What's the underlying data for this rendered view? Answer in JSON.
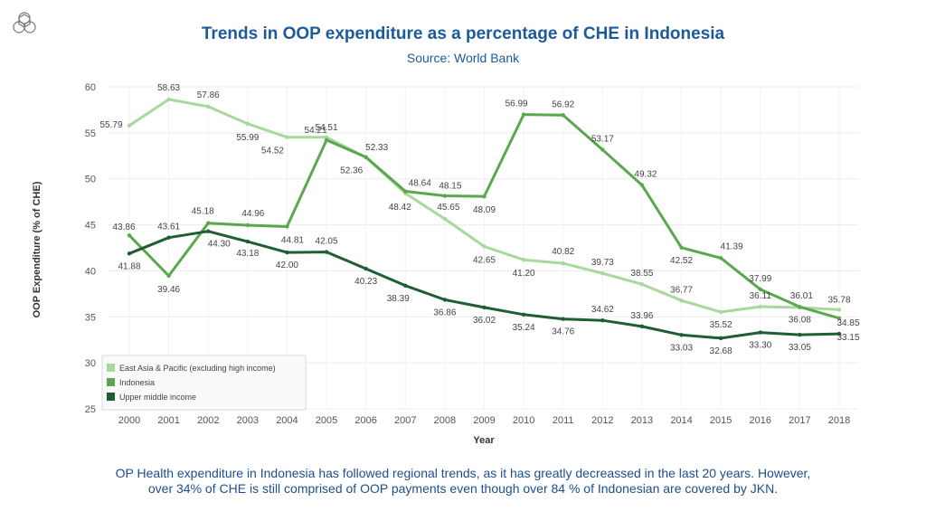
{
  "header": {
    "title": "Trends in OOP expenditure as a percentage of CHE in Indonesia",
    "subtitle": "Source: World Bank",
    "logo_icon": "hexagon-flower-logo-icon"
  },
  "caption": {
    "line1": "OP Health expenditure in Indonesia has followed regional trends, as it has greatly decreassed in the last 20 years. However,",
    "line2": "over 34% of CHE is still comprised of OOP payments even though over 84 % of Indonesian are covered by JKN."
  },
  "chart_data": {
    "type": "line",
    "xlabel": "Year",
    "ylabel": "OOP Expenditure (% of CHE)",
    "ylim": [
      25,
      60
    ],
    "yticks": [
      25,
      30,
      35,
      40,
      45,
      50,
      55,
      60
    ],
    "grid": true,
    "legend": "bottom-left",
    "x": [
      "2000",
      "2001",
      "2002",
      "2003",
      "2004",
      "2005",
      "2006",
      "2007",
      "2008",
      "2009",
      "2010",
      "2011",
      "2012",
      "2013",
      "2014",
      "2015",
      "2016",
      "2017",
      "2018"
    ],
    "series": [
      {
        "name": "East Asia & Pacific (excluding high income)",
        "color": "#a8d89c",
        "values": [
          55.79,
          58.63,
          57.86,
          55.99,
          54.52,
          54.51,
          52.33,
          48.42,
          45.65,
          42.65,
          41.2,
          40.82,
          39.73,
          38.55,
          36.77,
          35.52,
          36.11,
          36.01,
          35.78
        ],
        "labels": [
          "55.79",
          "58.63",
          "57.86",
          "55.99",
          "54.52",
          "54.51",
          "52.33",
          "48.42",
          "45.65",
          "42.65",
          "41.20",
          "40.82",
          "39.73",
          "38.55",
          "36.77",
          "35.52",
          "36.11",
          "36.01",
          "35.78"
        ]
      },
      {
        "name": "Indonesia",
        "color": "#5aa84e",
        "values": [
          43.86,
          39.46,
          45.18,
          44.96,
          44.81,
          54.21,
          52.36,
          48.64,
          48.15,
          48.09,
          56.99,
          56.92,
          53.17,
          49.32,
          42.52,
          41.39,
          37.99,
          36.08,
          34.85
        ],
        "labels": [
          "43.86",
          "39.46",
          "45.18",
          "44.96",
          "44.81",
          "54.21",
          "52.36",
          "48.64",
          "48.15",
          "48.09",
          "56.99",
          "56.92",
          "53.17",
          "49.32",
          "42.52",
          "41.39",
          "37.99",
          "36.08",
          "34.85"
        ]
      },
      {
        "name": "Upper middle income",
        "color": "#1f5e34",
        "values": [
          41.88,
          43.61,
          44.3,
          43.18,
          42.0,
          42.05,
          40.23,
          38.39,
          36.86,
          36.02,
          35.24,
          34.76,
          34.62,
          33.96,
          33.03,
          32.68,
          33.3,
          33.05,
          33.15
        ],
        "labels": [
          "41.88",
          "43.61",
          "44.30",
          "43.18",
          "42.00",
          "42.05",
          "40.23",
          "38.39",
          "36.86",
          "36.02",
          "35.24",
          "34.76",
          "34.62",
          "33.96",
          "33.03",
          "32.68",
          "33.30",
          "33.05",
          "33.15"
        ]
      }
    ]
  }
}
